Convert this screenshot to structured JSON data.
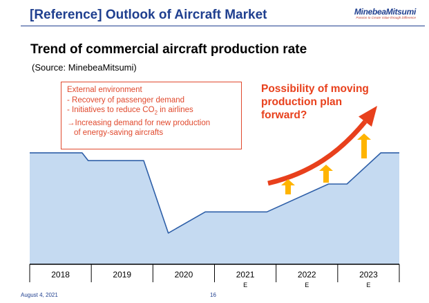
{
  "header": {
    "title": "[Reference] Outlook of Aircraft Market",
    "logo_name": "MinebeaMitsumi",
    "logo_tagline": "Passion to Create Value through Difference",
    "accent_color": "#1f3f8f"
  },
  "chart_data": {
    "type": "area",
    "title": "Trend of commercial aircraft production rate",
    "subtitle": "(Source: MinebeaMitsumi)",
    "categories": [
      "2018",
      "2019",
      "2020",
      "2021",
      "2022",
      "2023"
    ],
    "estimate_marks": [
      "",
      "",
      "",
      "E",
      "E",
      "E"
    ],
    "x": [
      0,
      0.85,
      0.95,
      1.85,
      2.25,
      2.85,
      3.85,
      4.85,
      5.15,
      5.7,
      6
    ],
    "values": [
      100,
      100,
      93,
      93,
      28,
      47,
      47,
      72,
      72,
      100,
      100
    ],
    "ylim": [
      0,
      108
    ],
    "xlabel": "",
    "ylabel": "",
    "grid": false,
    "fill_color": "#c5daf1",
    "line_color": "#2e5fa8"
  },
  "annotations": {
    "environment_box": {
      "heading": "External environment",
      "line1": "- Recovery of passenger demand",
      "line2_main": "- Initiatives to reduce CO",
      "line2_sub": "2",
      "line2_end": " in airlines",
      "line3": "→Increasing demand for new production",
      "line4": "of energy-saving aircrafts",
      "color": "#e0482c"
    },
    "callout": {
      "line1": "Possibility of moving",
      "line2": "production plan",
      "line3": "forward?",
      "color": "#e8401c"
    },
    "arrow_color": "#ffb400"
  },
  "footer": {
    "date": "August 4, 2021",
    "page": "16"
  }
}
